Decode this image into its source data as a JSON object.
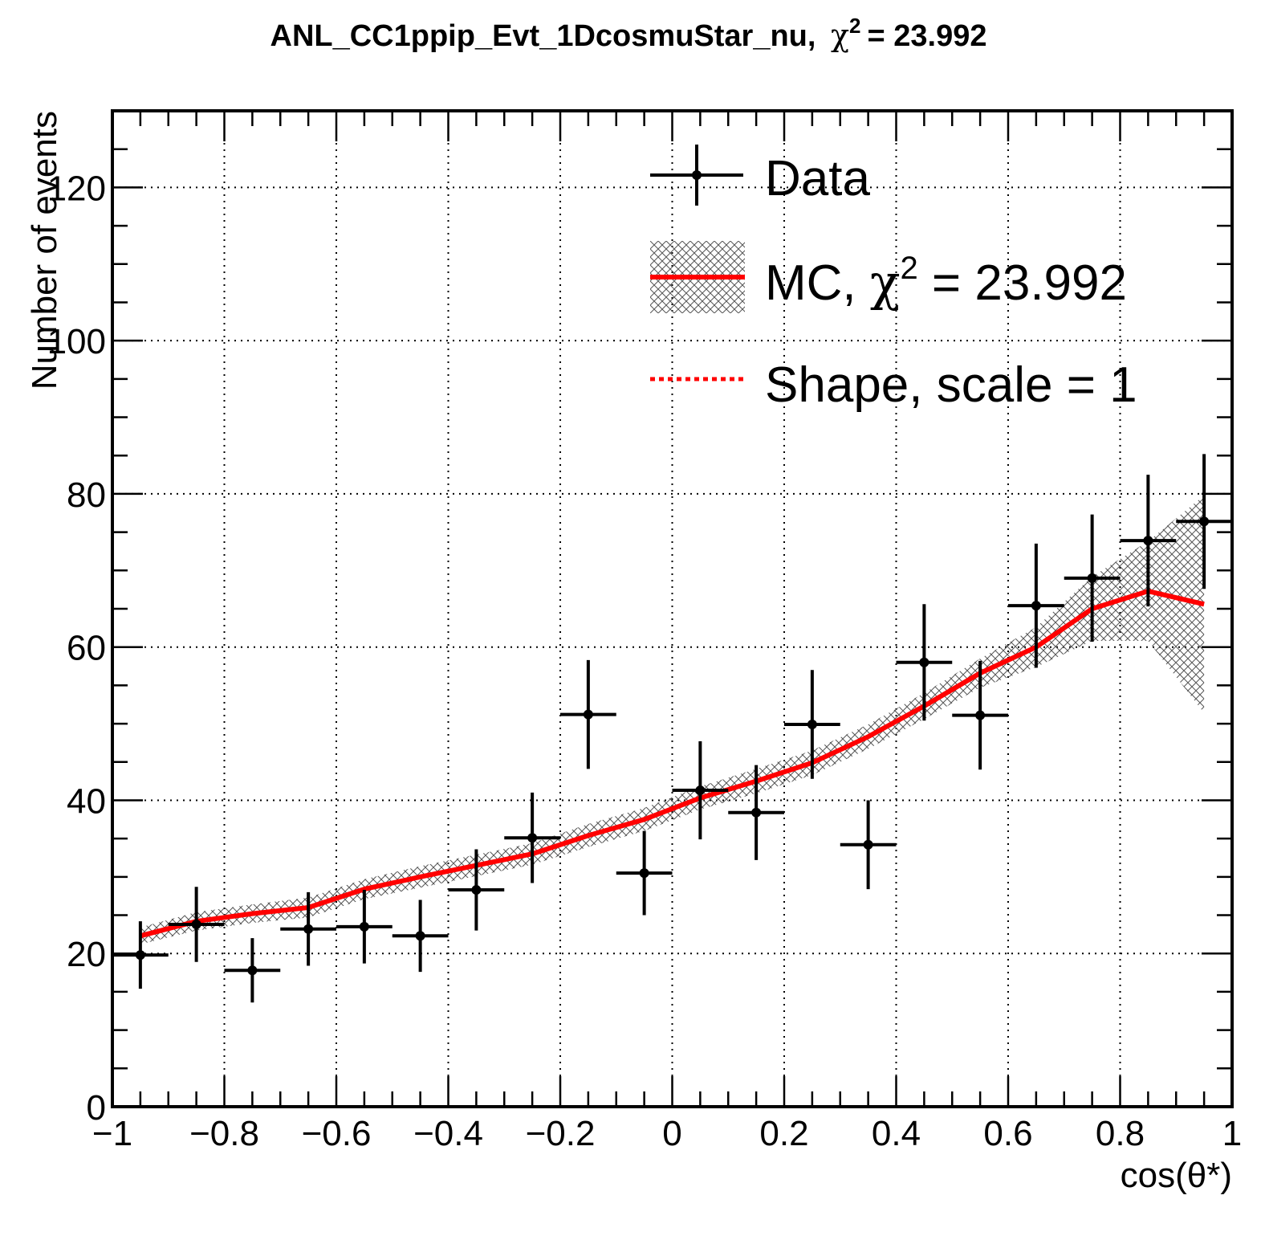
{
  "chart_data": {
    "type": "line",
    "title": "ANL_CC1ppip_Evt_1DcosmuStar_nu, χ² = 23.992",
    "title_main": "ANL_CC1ppip_Evt_1DcosmuStar_nu,",
    "title_chi": "χ",
    "title_sup": "2",
    "title_value": "= 23.992",
    "xlabel": "cos(θ*)",
    "ylabel": "Number of events",
    "xlim": [
      -1,
      1
    ],
    "ylim": [
      0,
      130
    ],
    "grid": true,
    "x_ticks": [
      -1,
      -0.8,
      -0.6,
      -0.4,
      -0.2,
      0,
      0.2,
      0.4,
      0.6,
      0.8,
      1
    ],
    "x_tick_labels": [
      "−1",
      "−0.8",
      "−0.6",
      "−0.4",
      "−0.2",
      "0",
      "0.2",
      "0.4",
      "0.6",
      "0.8",
      "1"
    ],
    "y_ticks": [
      0,
      20,
      40,
      60,
      80,
      100,
      120
    ],
    "y_tick_labels": [
      "0",
      "20",
      "40",
      "60",
      "80",
      "100",
      "120"
    ],
    "legend_position": "top-right",
    "legend": {
      "data_label": "Data",
      "mc_label_main": "MC, ",
      "mc_label_chi": "χ",
      "mc_label_sup": "2",
      "mc_label_value": " = 23.992",
      "shape_label": "Shape, scale = 1"
    },
    "bin_half_width": 0.05,
    "series": [
      {
        "name": "Data",
        "color": "#000000",
        "x": [
          -0.95,
          -0.85,
          -0.75,
          -0.65,
          -0.55,
          -0.45,
          -0.35,
          -0.25,
          -0.15,
          -0.05,
          0.05,
          0.15,
          0.25,
          0.35,
          0.45,
          0.55,
          0.65,
          0.75,
          0.85,
          0.95
        ],
        "y": [
          19.8,
          23.8,
          17.8,
          23.2,
          23.5,
          22.3,
          28.3,
          35.1,
          51.2,
          30.5,
          41.3,
          38.4,
          49.9,
          34.2,
          58.0,
          51.1,
          65.4,
          69.0,
          73.9,
          76.4
        ],
        "yerr": [
          4.4,
          4.9,
          4.2,
          4.8,
          4.8,
          4.7,
          5.3,
          5.9,
          7.1,
          5.5,
          6.4,
          6.2,
          7.1,
          5.8,
          7.6,
          7.1,
          8.1,
          8.3,
          8.6,
          8.8
        ]
      },
      {
        "name": "MC, χ² = 23.992",
        "color": "#ff0000",
        "x": [
          -0.95,
          -0.85,
          -0.75,
          -0.65,
          -0.55,
          -0.45,
          -0.35,
          -0.25,
          -0.15,
          -0.05,
          0.05,
          0.15,
          0.25,
          0.35,
          0.45,
          0.55,
          0.65,
          0.75,
          0.85,
          0.95
        ],
        "y": [
          22.3,
          24.2,
          25.2,
          26.0,
          28.4,
          30.0,
          31.5,
          33.0,
          35.4,
          37.5,
          40.3,
          42.5,
          44.9,
          48.3,
          52.3,
          56.6,
          60.0,
          65.0,
          67.3,
          65.6
        ],
        "yerr": [
          1.1,
          1.2,
          1.2,
          1.3,
          1.3,
          1.4,
          1.4,
          1.4,
          1.5,
          1.5,
          1.5,
          1.6,
          1.6,
          1.6,
          1.7,
          1.9,
          2.6,
          4.2,
          6.5,
          14.2
        ]
      },
      {
        "name": "Shape, scale = 1",
        "color": "#ff0000",
        "style": "dotted",
        "x": [
          -0.95,
          -0.85,
          -0.75,
          -0.65,
          -0.55,
          -0.45,
          -0.35,
          -0.25,
          -0.15,
          -0.05,
          0.05,
          0.15,
          0.25,
          0.35,
          0.45,
          0.55,
          0.65,
          0.75,
          0.85,
          0.95
        ],
        "y": [
          22.3,
          24.2,
          25.2,
          26.0,
          28.4,
          30.0,
          31.5,
          33.0,
          35.4,
          37.5,
          40.3,
          42.5,
          44.9,
          48.3,
          52.3,
          56.6,
          60.0,
          65.0,
          67.3,
          65.6
        ]
      }
    ]
  }
}
